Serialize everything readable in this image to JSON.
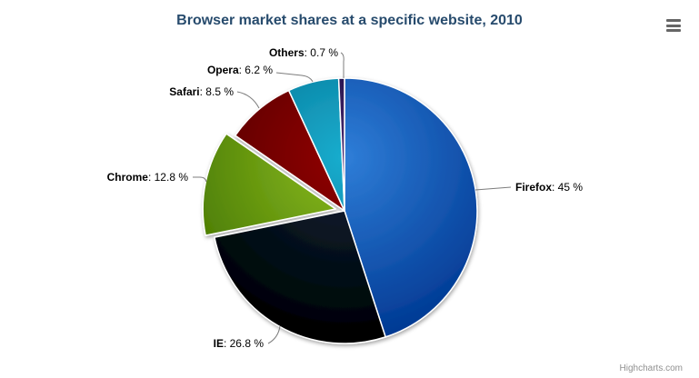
{
  "header": {
    "title": "Browser market shares at a specific website, 2010"
  },
  "credits": {
    "label": "Highcharts.com"
  },
  "controls": {
    "context_menu_icon": "hamburger-icon"
  },
  "colors": {
    "title": "#274b6d",
    "connector": "#666666",
    "label_text": "#000000",
    "credits": "#909090",
    "background": "#ffffff",
    "menu_icon": "#666666"
  },
  "chart_data": {
    "type": "pie",
    "title": "Browser market shares at a specific website, 2010",
    "legend": "none",
    "unit": "%",
    "start_angle_deg": 0,
    "direction": "clockwise",
    "slices": [
      {
        "name": "Firefox",
        "value": 45,
        "percent_text": "45 %",
        "color": "#2f7ed8",
        "sliced": false
      },
      {
        "name": "IE",
        "value": 26.8,
        "percent_text": "26.8 %",
        "color": "#0d233a",
        "sliced": false
      },
      {
        "name": "Chrome",
        "value": 12.8,
        "percent_text": "12.8 %",
        "color": "#8bbc21",
        "sliced": true
      },
      {
        "name": "Safari",
        "value": 8.5,
        "percent_text": "8.5 %",
        "color": "#910000",
        "sliced": false
      },
      {
        "name": "Opera",
        "value": 6.2,
        "percent_text": "6.2 %",
        "color": "#1aadce",
        "sliced": false
      },
      {
        "name": "Others",
        "value": 0.7,
        "percent_text": "0.7 %",
        "color": "#492970",
        "sliced": false
      }
    ]
  }
}
